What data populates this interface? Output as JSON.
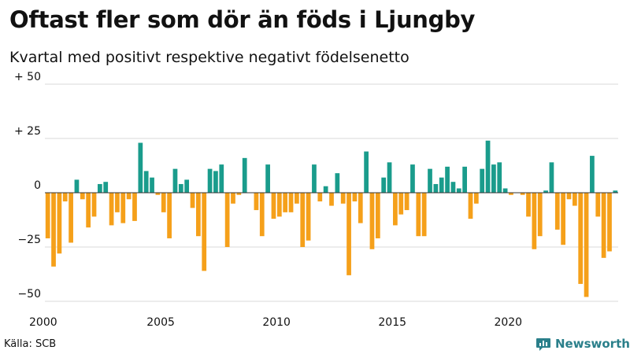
{
  "header": {
    "title": "Oftast fler som dör än föds i Ljungby",
    "subtitle": "Kvartal med positivt respektive negativt födelsenetto"
  },
  "footer": {
    "source": "Källa: SCB",
    "brand": "Newsworthy"
  },
  "colors": {
    "positive": "#1a9c8c",
    "negative": "#f5a01a",
    "grid": "#d9d9d9",
    "axis": "#333333",
    "brand": "#2a7f8a"
  },
  "chart_data": {
    "type": "bar",
    "title": "Oftast fler som dör än föds i Ljungby",
    "subtitle": "Kvartal med positivt respektive negativt födelsenetto",
    "xlabel": "",
    "ylabel": "",
    "ylim": [
      -50,
      50
    ],
    "yticks": [
      50,
      25,
      0,
      -25,
      -50
    ],
    "ytick_labels": [
      "+ 50",
      "+ 25",
      "0",
      "−25",
      "−50"
    ],
    "xlim": [
      2000.0,
      2024.75
    ],
    "xticks": [
      2000,
      2005,
      2010,
      2015,
      2020
    ],
    "xtick_labels": [
      "2000",
      "2005",
      "2010",
      "2015",
      "2020"
    ],
    "grid": true,
    "start_year": 2000,
    "start_quarter": 1,
    "frequency": "quarterly",
    "values": [
      -21,
      -34,
      -28,
      -4,
      -23,
      6,
      -3,
      -16,
      -11,
      4,
      5,
      -15,
      -9,
      -14,
      -3,
      -13,
      23,
      10,
      7,
      -1,
      -9,
      -21,
      11,
      4,
      6,
      -7,
      -20,
      -36,
      11,
      10,
      13,
      -25,
      -5,
      -1,
      16,
      0,
      -8,
      -20,
      13,
      -12,
      -11,
      -9,
      -9,
      -5,
      -25,
      -22,
      13,
      -4,
      3,
      -6,
      9,
      -5,
      -38,
      -4,
      -14,
      19,
      -26,
      -21,
      7,
      14,
      -15,
      -10,
      -8,
      13,
      -20,
      -20,
      11,
      4,
      7,
      12,
      5,
      2,
      12,
      -12,
      -5,
      11,
      24,
      13,
      14,
      2,
      -1,
      0,
      -1,
      -11,
      -26,
      -20,
      1,
      14,
      -17,
      -24,
      -3,
      -6,
      -42,
      -48,
      17,
      -11,
      -30,
      -27,
      1
    ]
  }
}
